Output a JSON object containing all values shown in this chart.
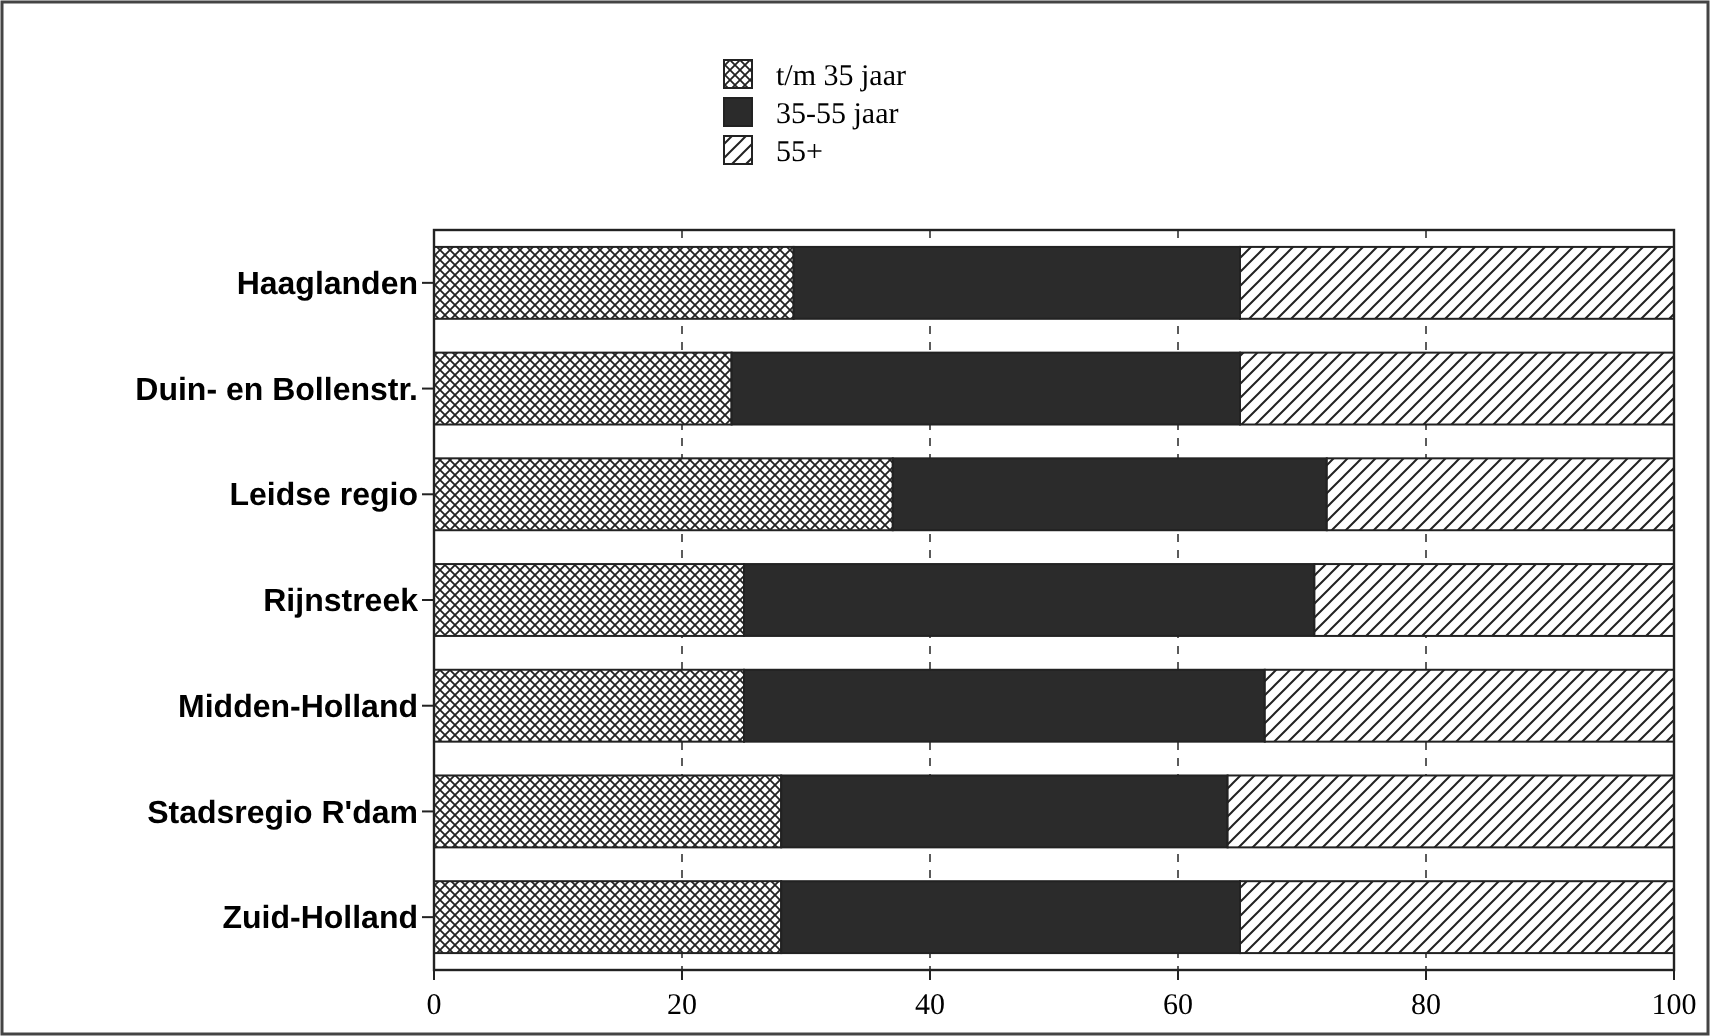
{
  "chart_data": {
    "type": "bar",
    "orientation": "horizontal",
    "stacked": true,
    "categories": [
      "Haaglanden",
      "Duin- en Bollenstr.",
      "Leidse regio",
      "Rijnstreek",
      "Midden-Holland",
      "Stadsregio R'dam",
      "Zuid-Holland"
    ],
    "series": [
      {
        "name": "t/m 35 jaar",
        "color": "#222222",
        "values": [
          29,
          24,
          37,
          25,
          25,
          28,
          28
        ]
      },
      {
        "name": "35-55 jaar",
        "color": "#2b2b2b",
        "values": [
          36,
          41,
          35,
          46,
          42,
          36,
          37
        ]
      },
      {
        "name": "55+",
        "color": "#222222",
        "values": [
          35,
          35,
          28,
          29,
          33,
          36,
          35
        ]
      }
    ],
    "xlim": [
      0,
      100
    ],
    "xticks": [
      0,
      20,
      40,
      60,
      80,
      100
    ],
    "grid": "x",
    "legend": "top"
  }
}
